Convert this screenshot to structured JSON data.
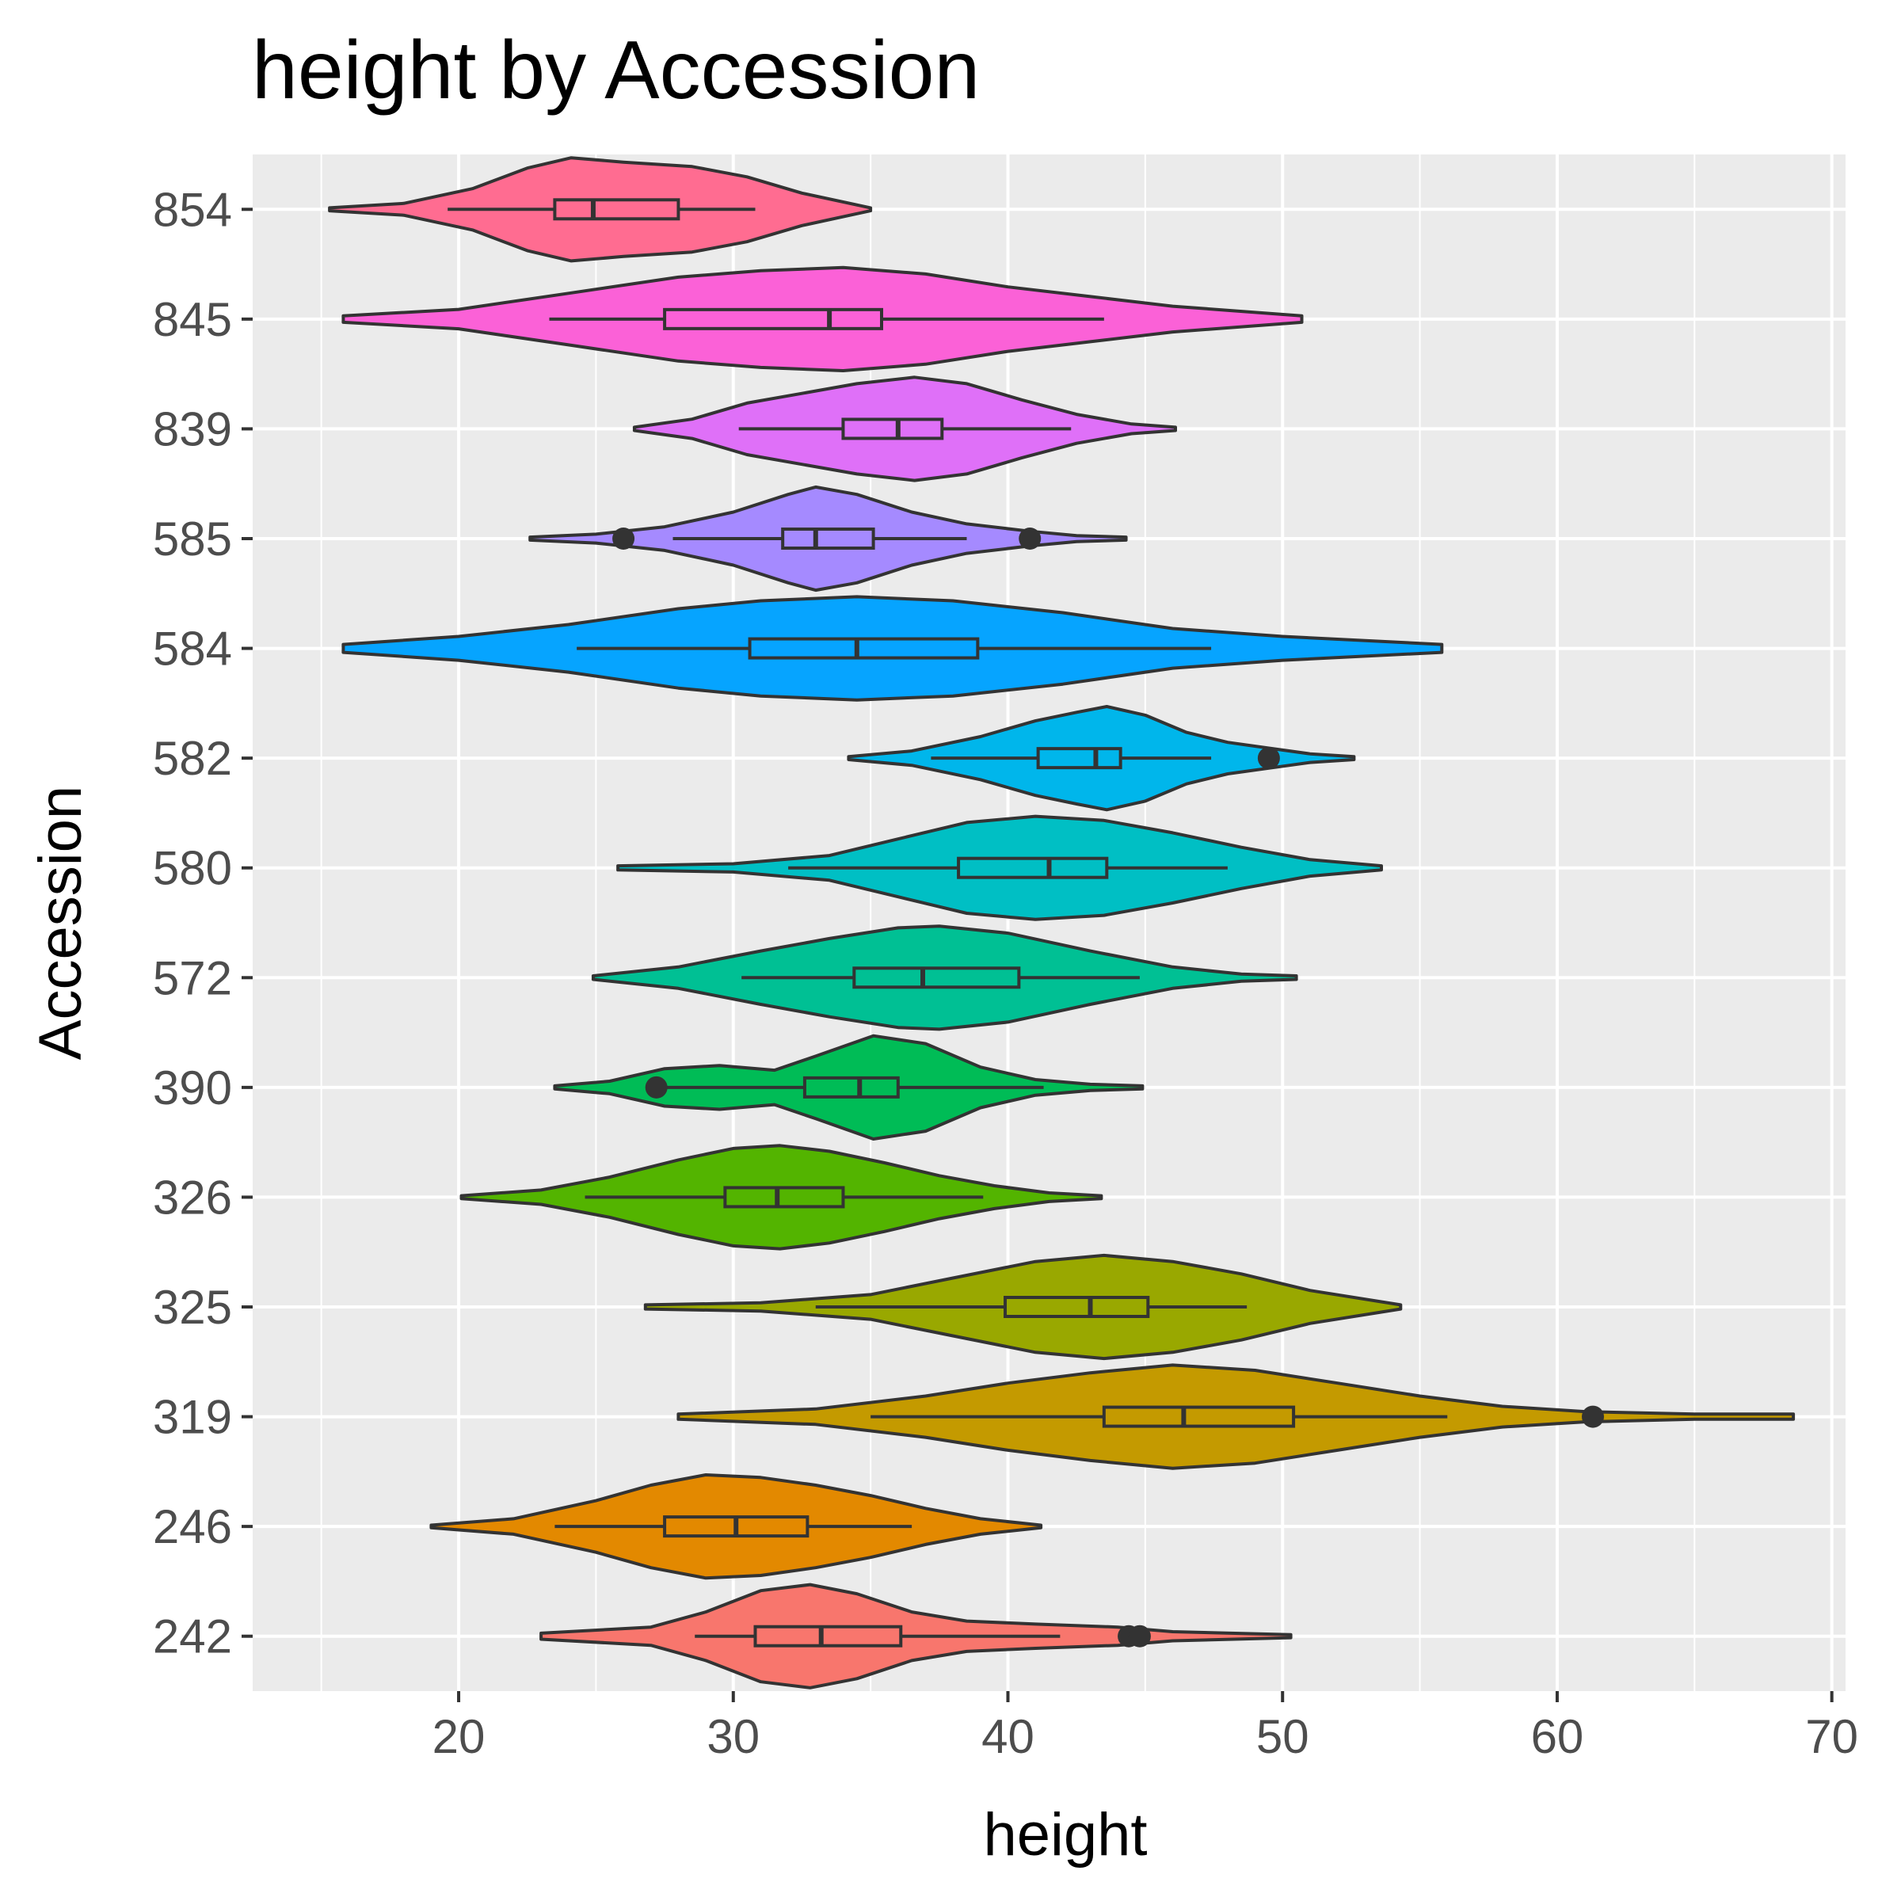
{
  "chart_data": {
    "type": "violin",
    "title": "height by Accession",
    "xlabel": "height",
    "ylabel": "Accession",
    "xlim": [
      12.5,
      70.5
    ],
    "x_ticks": [
      20,
      30,
      40,
      50,
      60,
      70
    ],
    "grid": true,
    "legend": "none",
    "categories": [
      "242",
      "246",
      "319",
      "325",
      "326",
      "390",
      "572",
      "580",
      "582",
      "584",
      "585",
      "839",
      "845",
      "854"
    ],
    "series": [
      {
        "category": "242",
        "color": "#F8766D",
        "min": 23.0,
        "max": 50.3,
        "q1": 30.8,
        "median": 33.2,
        "q3": 36.1,
        "whisker_low": 28.6,
        "whisker_high": 41.9,
        "outliers": [
          44.4,
          44.8
        ],
        "density": [
          [
            23.0,
            2
          ],
          [
            27.0,
            6
          ],
          [
            29.0,
            16
          ],
          [
            31.0,
            30
          ],
          [
            32.8,
            34
          ],
          [
            34.5,
            28
          ],
          [
            36.5,
            16
          ],
          [
            38.5,
            10
          ],
          [
            41.0,
            8
          ],
          [
            44.0,
            6
          ],
          [
            46.0,
            3
          ],
          [
            50.3,
            1
          ]
        ]
      },
      {
        "category": "246",
        "color": "#E38900",
        "min": 19.0,
        "max": 41.2,
        "q1": 27.5,
        "median": 30.1,
        "q3": 32.7,
        "whisker_low": 23.5,
        "whisker_high": 36.5,
        "outliers": [],
        "density": [
          [
            19.0,
            1
          ],
          [
            22.0,
            6
          ],
          [
            25.0,
            20
          ],
          [
            27.0,
            32
          ],
          [
            29.0,
            40
          ],
          [
            31.0,
            38
          ],
          [
            33.0,
            32
          ],
          [
            35.0,
            24
          ],
          [
            37.0,
            14
          ],
          [
            39.0,
            6
          ],
          [
            41.2,
            1
          ]
        ]
      },
      {
        "category": "319",
        "color": "#C49A00",
        "min": 28.0,
        "max": 68.6,
        "q1": 43.5,
        "median": 46.4,
        "q3": 50.4,
        "whisker_low": 35.0,
        "whisker_high": 56.0,
        "outliers": [
          61.3
        ],
        "density": [
          [
            28.0,
            1
          ],
          [
            33.0,
            3
          ],
          [
            37.0,
            8
          ],
          [
            40.0,
            13
          ],
          [
            43.0,
            17
          ],
          [
            46.0,
            20
          ],
          [
            49.0,
            18
          ],
          [
            52.0,
            13
          ],
          [
            55.0,
            8
          ],
          [
            58.0,
            4
          ],
          [
            61.0,
            2
          ],
          [
            65.0,
            1
          ],
          [
            68.6,
            1
          ]
        ]
      },
      {
        "category": "325",
        "color": "#99A800",
        "min": 26.8,
        "max": 54.3,
        "q1": 39.9,
        "median": 43.0,
        "q3": 45.1,
        "whisker_low": 33.0,
        "whisker_high": 48.7,
        "outliers": [],
        "density": [
          [
            26.8,
            1
          ],
          [
            31.0,
            2
          ],
          [
            35.0,
            6
          ],
          [
            38.0,
            14
          ],
          [
            41.0,
            22
          ],
          [
            43.5,
            25
          ],
          [
            46.0,
            22
          ],
          [
            48.5,
            16
          ],
          [
            51.0,
            8
          ],
          [
            54.3,
            1
          ]
        ]
      },
      {
        "category": "326",
        "color": "#53B400",
        "min": 20.1,
        "max": 43.4,
        "q1": 29.7,
        "median": 31.6,
        "q3": 34.0,
        "whisker_low": 24.6,
        "whisker_high": 39.1,
        "outliers": [],
        "density": [
          [
            20.1,
            1
          ],
          [
            23.0,
            5
          ],
          [
            25.5,
            14
          ],
          [
            28.0,
            26
          ],
          [
            30.0,
            34
          ],
          [
            31.7,
            36
          ],
          [
            33.5,
            32
          ],
          [
            35.5,
            24
          ],
          [
            37.5,
            15
          ],
          [
            39.5,
            8
          ],
          [
            41.5,
            3
          ],
          [
            43.4,
            1
          ]
        ]
      },
      {
        "category": "390",
        "color": "#00BC56",
        "min": 23.5,
        "max": 44.9,
        "q1": 32.6,
        "median": 34.6,
        "q3": 36.0,
        "whisker_low": 27.2,
        "whisker_high": 41.3,
        "outliers": [
          27.2
        ],
        "density": [
          [
            23.5,
            1
          ],
          [
            25.5,
            4
          ],
          [
            27.5,
            12
          ],
          [
            29.5,
            14
          ],
          [
            31.5,
            11
          ],
          [
            33.0,
            20
          ],
          [
            35.1,
            33
          ],
          [
            37.0,
            28
          ],
          [
            39.0,
            13
          ],
          [
            41.0,
            5
          ],
          [
            43.0,
            2
          ],
          [
            44.9,
            1
          ]
        ]
      },
      {
        "category": "572",
        "color": "#00C094",
        "min": 24.9,
        "max": 50.5,
        "q1": 34.4,
        "median": 36.9,
        "q3": 40.4,
        "whisker_low": 30.3,
        "whisker_high": 44.8,
        "outliers": [],
        "density": [
          [
            24.9,
            1
          ],
          [
            28.0,
            6
          ],
          [
            31.0,
            15
          ],
          [
            33.5,
            22
          ],
          [
            36.0,
            28
          ],
          [
            37.5,
            29
          ],
          [
            40.0,
            25
          ],
          [
            43.0,
            15
          ],
          [
            46.0,
            6
          ],
          [
            48.5,
            2
          ],
          [
            50.5,
            1
          ]
        ]
      },
      {
        "category": "580",
        "color": "#00BFC4",
        "min": 25.8,
        "max": 53.6,
        "q1": 38.2,
        "median": 41.5,
        "q3": 43.6,
        "whisker_low": 32.0,
        "whisker_high": 48.0,
        "outliers": [],
        "density": [
          [
            25.8,
            1
          ],
          [
            30.0,
            2
          ],
          [
            33.5,
            6
          ],
          [
            36.0,
            14
          ],
          [
            38.5,
            22
          ],
          [
            41.0,
            25
          ],
          [
            43.5,
            23
          ],
          [
            46.0,
            17
          ],
          [
            48.5,
            10
          ],
          [
            51.0,
            4
          ],
          [
            53.6,
            1
          ]
        ]
      },
      {
        "category": "582",
        "color": "#00B6EB",
        "min": 34.2,
        "max": 52.6,
        "q1": 41.1,
        "median": 43.2,
        "q3": 44.1,
        "whisker_low": 37.2,
        "whisker_high": 47.4,
        "outliers": [
          49.5
        ],
        "density": [
          [
            34.2,
            1
          ],
          [
            36.5,
            5
          ],
          [
            39.0,
            15
          ],
          [
            41.0,
            26
          ],
          [
            42.5,
            32
          ],
          [
            43.6,
            36
          ],
          [
            45.0,
            30
          ],
          [
            46.5,
            18
          ],
          [
            48.0,
            11
          ],
          [
            49.5,
            7
          ],
          [
            51.0,
            3
          ],
          [
            52.6,
            1
          ]
        ]
      },
      {
        "category": "584",
        "color": "#06A4FF",
        "min": 15.8,
        "max": 55.8,
        "q1": 30.6,
        "median": 34.5,
        "q3": 38.9,
        "whisker_low": 24.3,
        "whisker_high": 47.4,
        "outliers": [],
        "density": [
          [
            15.8,
            1
          ],
          [
            20.0,
            3
          ],
          [
            24.0,
            6
          ],
          [
            28.0,
            10
          ],
          [
            31.0,
            12
          ],
          [
            34.5,
            13
          ],
          [
            38.0,
            12
          ],
          [
            42.0,
            9
          ],
          [
            46.0,
            5
          ],
          [
            50.0,
            3
          ],
          [
            55.8,
            1
          ]
        ]
      },
      {
        "category": "585",
        "color": "#A58AFF",
        "min": 22.6,
        "max": 44.3,
        "q1": 31.8,
        "median": 33.0,
        "q3": 35.1,
        "whisker_low": 27.8,
        "whisker_high": 38.5,
        "outliers": [
          26.0,
          40.8
        ],
        "density": [
          [
            22.6,
            1
          ],
          [
            25.0,
            3
          ],
          [
            27.5,
            8
          ],
          [
            30.0,
            18
          ],
          [
            32.0,
            30
          ],
          [
            33.0,
            35
          ],
          [
            34.5,
            30
          ],
          [
            36.5,
            18
          ],
          [
            38.5,
            10
          ],
          [
            40.8,
            5
          ],
          [
            42.5,
            2
          ],
          [
            44.3,
            1
          ]
        ]
      },
      {
        "category": "839",
        "color": "#DF70F8",
        "min": 26.4,
        "max": 46.1,
        "q1": 34.0,
        "median": 36.0,
        "q3": 37.6,
        "whisker_low": 30.2,
        "whisker_high": 42.3,
        "outliers": [],
        "density": [
          [
            26.4,
            1
          ],
          [
            28.5,
            6
          ],
          [
            30.5,
            16
          ],
          [
            32.5,
            22
          ],
          [
            34.5,
            28
          ],
          [
            36.6,
            32
          ],
          [
            38.5,
            28
          ],
          [
            40.5,
            18
          ],
          [
            42.5,
            9
          ],
          [
            44.5,
            3
          ],
          [
            46.1,
            1
          ]
        ]
      },
      {
        "category": "845",
        "color": "#FB61D7",
        "min": 15.8,
        "max": 50.7,
        "q1": 27.5,
        "median": 33.5,
        "q3": 35.4,
        "whisker_low": 23.3,
        "whisker_high": 43.5,
        "outliers": [],
        "density": [
          [
            15.8,
            1
          ],
          [
            20.0,
            3
          ],
          [
            24.0,
            8
          ],
          [
            28.0,
            13
          ],
          [
            31.0,
            15
          ],
          [
            34.0,
            16
          ],
          [
            37.0,
            14
          ],
          [
            40.0,
            10
          ],
          [
            43.0,
            7
          ],
          [
            46.0,
            4
          ],
          [
            50.7,
            1
          ]
        ]
      },
      {
        "category": "854",
        "color": "#FF6C91",
        "min": 15.3,
        "max": 35.0,
        "q1": 23.5,
        "median": 24.9,
        "q3": 28.0,
        "whisker_low": 19.6,
        "whisker_high": 30.8,
        "outliers": [],
        "density": [
          [
            15.3,
            1
          ],
          [
            18.0,
            4
          ],
          [
            20.5,
            14
          ],
          [
            22.5,
            28
          ],
          [
            24.1,
            35
          ],
          [
            26.0,
            32
          ],
          [
            28.5,
            29
          ],
          [
            30.5,
            22
          ],
          [
            32.5,
            11
          ],
          [
            35.0,
            1
          ]
        ]
      }
    ]
  }
}
